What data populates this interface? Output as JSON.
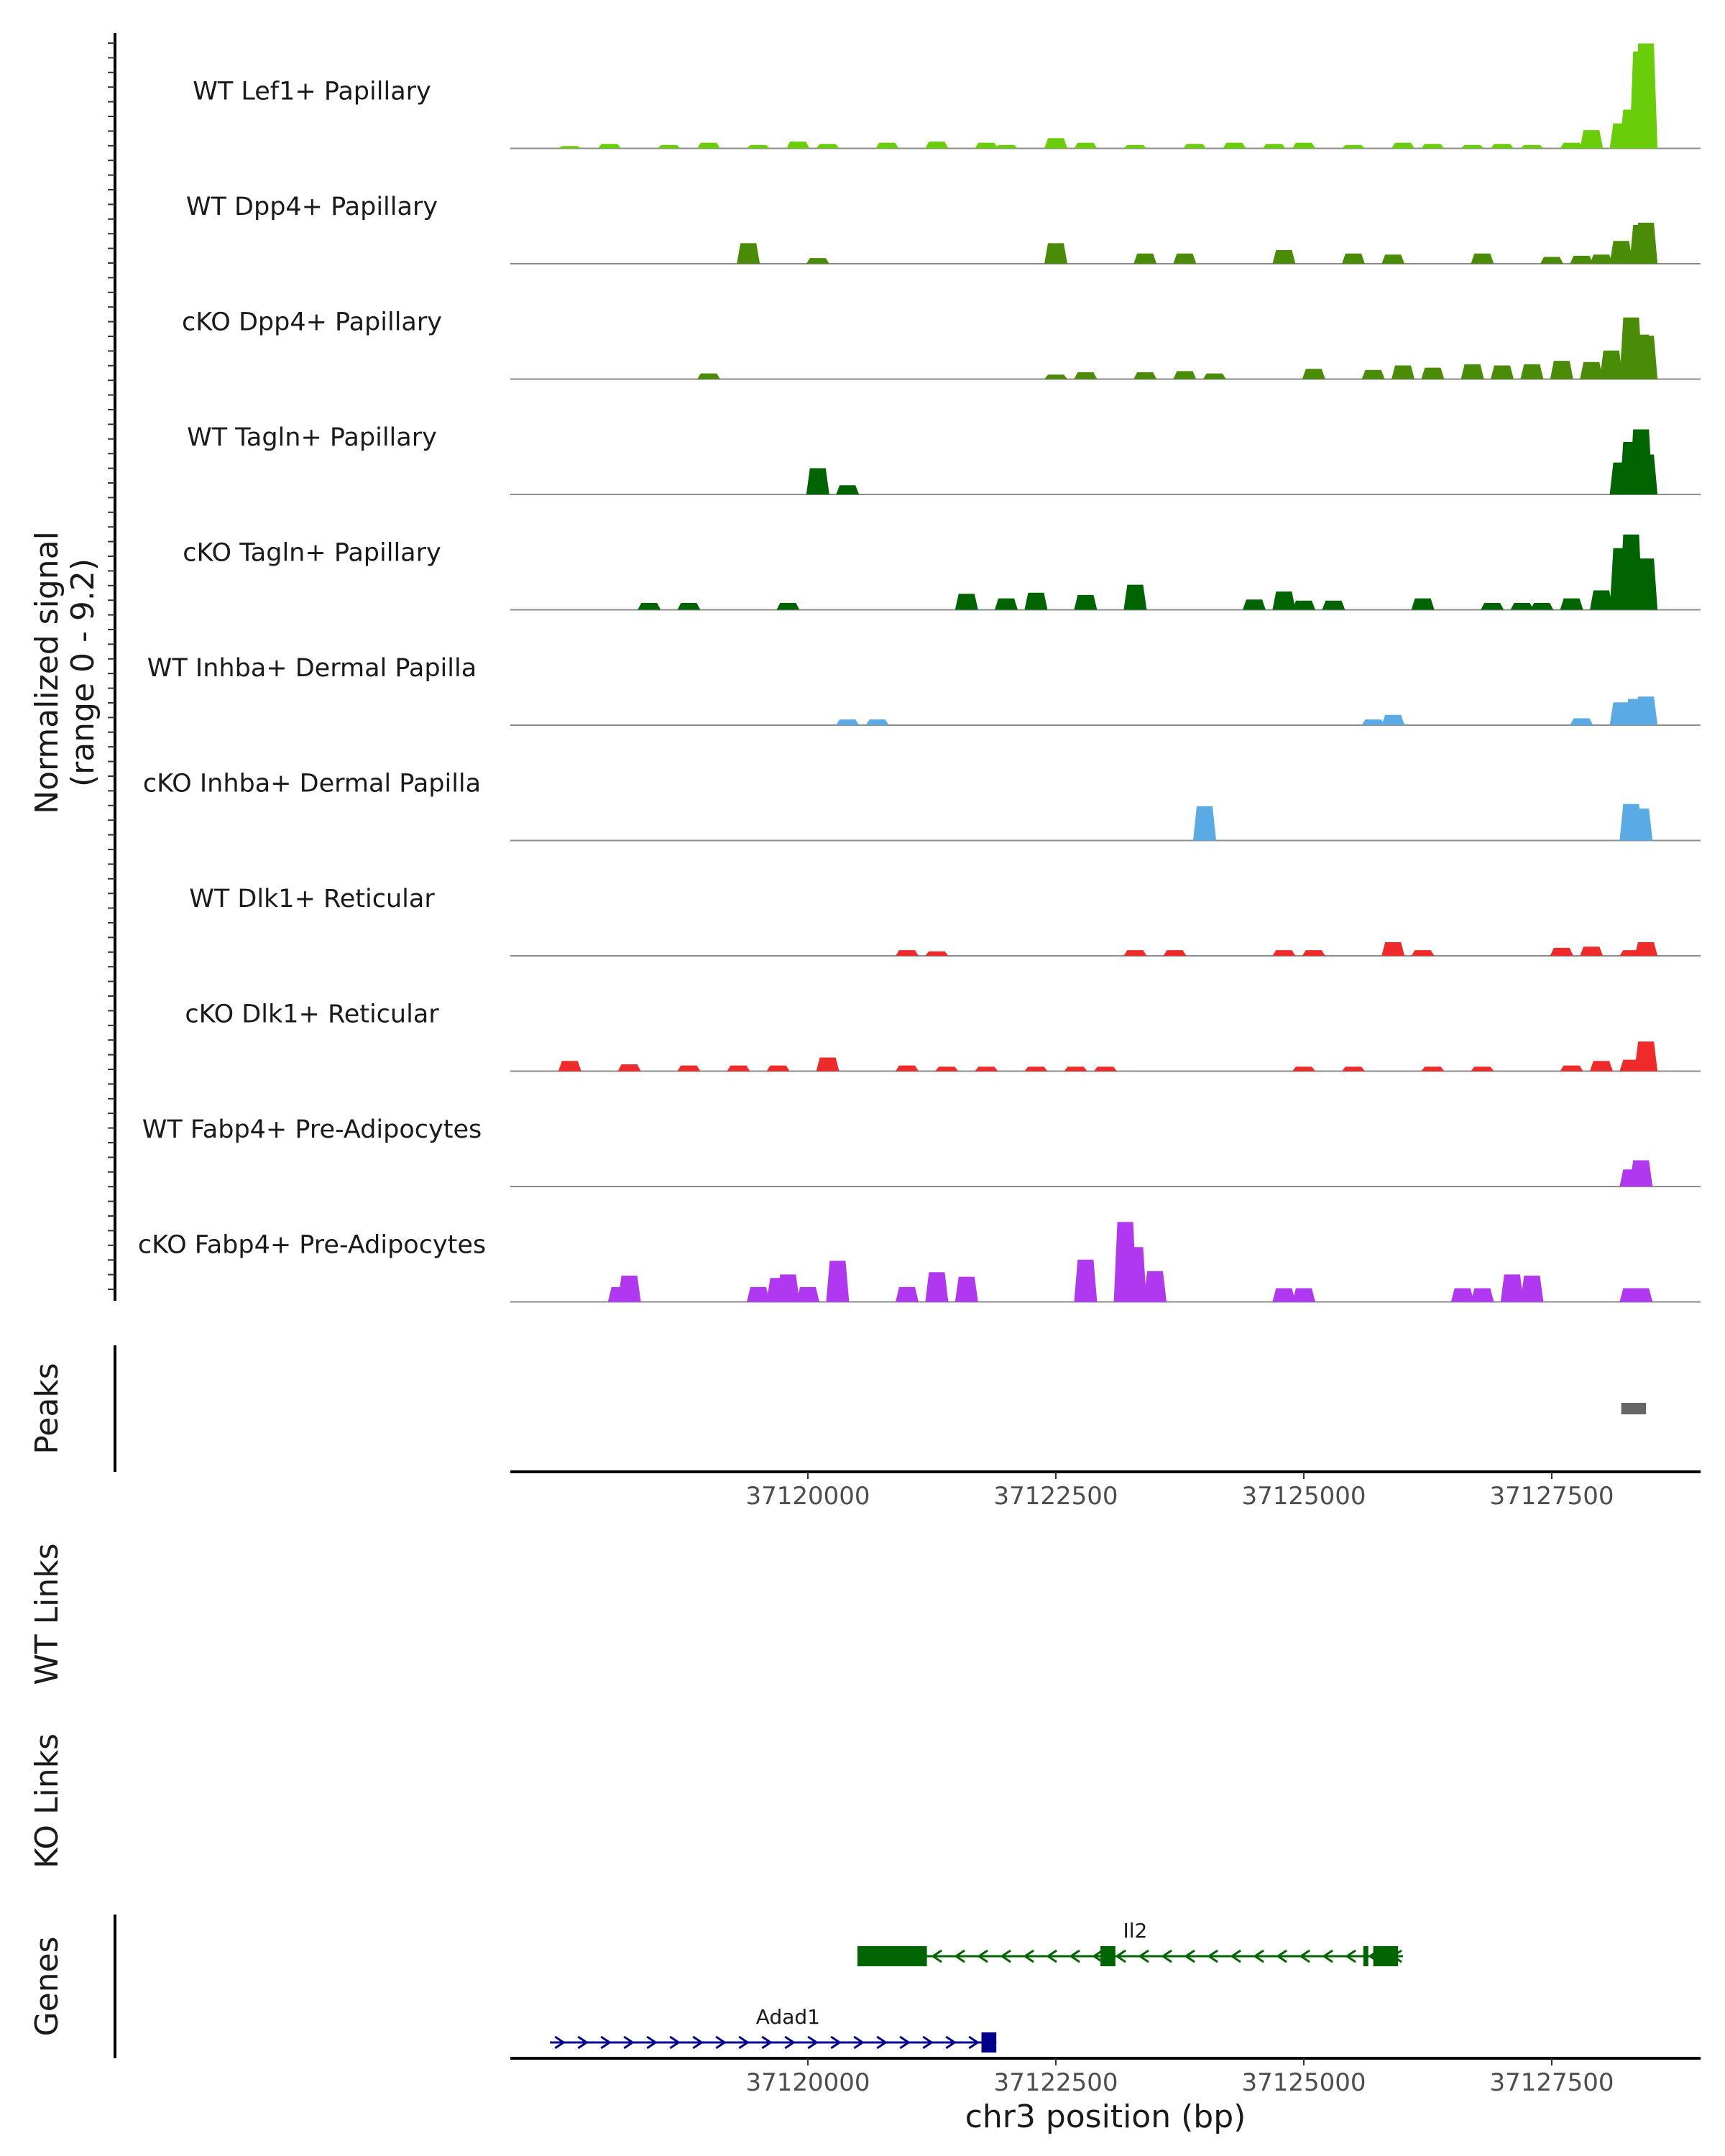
{
  "chart_data": {
    "type": "area",
    "title": "",
    "region": {
      "chromosome": "chr3",
      "start": 37117000,
      "end": 37129000
    },
    "ylabel": "Normalized signal",
    "ylabel_range": "(range 0 - 9.2)",
    "ylim": [
      0,
      9.2
    ],
    "xlabel": "chr3 position (bp)",
    "x_ticks": [
      {
        "value": 37120000,
        "label": "37120000"
      },
      {
        "value": 37122500,
        "label": "37122500"
      },
      {
        "value": 37125000,
        "label": "37125000"
      },
      {
        "value": 37127500,
        "label": "37127500"
      }
    ],
    "series": [
      {
        "name": "WT Lef1+ Papillary",
        "color": "#6acd0a",
        "points": [
          [
            37117600,
            0.2
          ],
          [
            37118000,
            0.4
          ],
          [
            37118600,
            0.3
          ],
          [
            37119000,
            0.5
          ],
          [
            37119500,
            0.3
          ],
          [
            37119900,
            0.6
          ],
          [
            37120200,
            0.4
          ],
          [
            37120800,
            0.5
          ],
          [
            37121300,
            0.6
          ],
          [
            37121800,
            0.5
          ],
          [
            37122000,
            0.3
          ],
          [
            37122500,
            0.9
          ],
          [
            37122800,
            0.5
          ],
          [
            37123300,
            0.3
          ],
          [
            37123900,
            0.4
          ],
          [
            37124300,
            0.5
          ],
          [
            37124700,
            0.4
          ],
          [
            37125000,
            0.5
          ],
          [
            37125500,
            0.3
          ],
          [
            37126000,
            0.5
          ],
          [
            37126300,
            0.4
          ],
          [
            37126700,
            0.3
          ],
          [
            37127000,
            0.4
          ],
          [
            37127300,
            0.3
          ],
          [
            37127700,
            0.5
          ],
          [
            37127900,
            1.6
          ],
          [
            37128200,
            2.2
          ],
          [
            37128300,
            3.4
          ],
          [
            37128400,
            8.5
          ],
          [
            37128450,
            9.2
          ]
        ]
      },
      {
        "name": "WT Dpp4+ Papillary",
        "color": "#4a8c07",
        "points": [
          [
            37119400,
            1.8
          ],
          [
            37120100,
            0.5
          ],
          [
            37122500,
            1.8
          ],
          [
            37123400,
            0.9
          ],
          [
            37123800,
            0.9
          ],
          [
            37124800,
            1.2
          ],
          [
            37125500,
            0.9
          ],
          [
            37125900,
            0.8
          ],
          [
            37126800,
            0.9
          ],
          [
            37127500,
            0.6
          ],
          [
            37127800,
            0.7
          ],
          [
            37128000,
            0.8
          ],
          [
            37128200,
            2.0
          ],
          [
            37128400,
            3.4
          ],
          [
            37128450,
            3.6
          ]
        ]
      },
      {
        "name": "cKO Dpp4+ Papillary",
        "color": "#4a8c07",
        "points": [
          [
            37119000,
            0.5
          ],
          [
            37122500,
            0.4
          ],
          [
            37122800,
            0.6
          ],
          [
            37123400,
            0.6
          ],
          [
            37123800,
            0.7
          ],
          [
            37124100,
            0.5
          ],
          [
            37125100,
            0.9
          ],
          [
            37125700,
            0.8
          ],
          [
            37126000,
            1.2
          ],
          [
            37126300,
            1.0
          ],
          [
            37126700,
            1.3
          ],
          [
            37127000,
            1.2
          ],
          [
            37127300,
            1.3
          ],
          [
            37127600,
            1.6
          ],
          [
            37127900,
            1.5
          ],
          [
            37128100,
            2.5
          ],
          [
            37128300,
            5.4
          ],
          [
            37128400,
            3.9
          ],
          [
            37128450,
            3.8
          ]
        ]
      },
      {
        "name": "WT Tagln+ Papillary",
        "color": "#006400",
        "points": [
          [
            37120100,
            2.3
          ],
          [
            37120400,
            0.8
          ],
          [
            37128200,
            2.8
          ],
          [
            37128300,
            4.6
          ],
          [
            37128400,
            5.7
          ],
          [
            37128450,
            3.5
          ]
        ]
      },
      {
        "name": "cKO Tagln+ Papillary",
        "color": "#006400",
        "points": [
          [
            37118400,
            0.6
          ],
          [
            37118800,
            0.6
          ],
          [
            37119800,
            0.6
          ],
          [
            37121600,
            1.4
          ],
          [
            37122000,
            1.0
          ],
          [
            37122300,
            1.5
          ],
          [
            37122800,
            1.3
          ],
          [
            37123300,
            2.2
          ],
          [
            37124500,
            0.9
          ],
          [
            37124800,
            1.6
          ],
          [
            37125000,
            0.8
          ],
          [
            37125300,
            0.8
          ],
          [
            37126200,
            1.0
          ],
          [
            37126900,
            0.6
          ],
          [
            37127200,
            0.6
          ],
          [
            37127400,
            0.6
          ],
          [
            37127700,
            1.0
          ],
          [
            37128000,
            1.7
          ],
          [
            37128200,
            5.4
          ],
          [
            37128300,
            6.6
          ],
          [
            37128450,
            4.5
          ]
        ]
      },
      {
        "name": "WT Inhba+ Dermal Papilla",
        "color": "#5aaae6",
        "points": [
          [
            37120400,
            0.5
          ],
          [
            37120700,
            0.5
          ],
          [
            37125700,
            0.5
          ],
          [
            37125900,
            0.9
          ],
          [
            37127800,
            0.6
          ],
          [
            37128200,
            2.0
          ],
          [
            37128350,
            2.3
          ],
          [
            37128450,
            2.5
          ]
        ]
      },
      {
        "name": "cKO Inhba+ Dermal Papilla",
        "color": "#5aaae6",
        "points": [
          [
            37124000,
            3.0
          ],
          [
            37128300,
            3.2
          ],
          [
            37128400,
            2.8
          ]
        ]
      },
      {
        "name": "WT Dlk1+ Reticular",
        "color": "#ee2a2a",
        "points": [
          [
            37121000,
            0.5
          ],
          [
            37121300,
            0.4
          ],
          [
            37123300,
            0.5
          ],
          [
            37123700,
            0.5
          ],
          [
            37124800,
            0.5
          ],
          [
            37125100,
            0.5
          ],
          [
            37125900,
            1.2
          ],
          [
            37126200,
            0.5
          ],
          [
            37127600,
            0.7
          ],
          [
            37127900,
            0.8
          ],
          [
            37128300,
            0.5
          ],
          [
            37128450,
            1.2
          ]
        ]
      },
      {
        "name": "cKO Dlk1+ Reticular",
        "color": "#ee2a2a",
        "points": [
          [
            37117600,
            0.9
          ],
          [
            37118200,
            0.6
          ],
          [
            37118800,
            0.5
          ],
          [
            37119300,
            0.5
          ],
          [
            37119700,
            0.5
          ],
          [
            37120200,
            1.2
          ],
          [
            37121000,
            0.5
          ],
          [
            37121400,
            0.4
          ],
          [
            37121800,
            0.4
          ],
          [
            37122300,
            0.4
          ],
          [
            37122700,
            0.4
          ],
          [
            37123000,
            0.4
          ],
          [
            37125000,
            0.4
          ],
          [
            37125500,
            0.4
          ],
          [
            37126300,
            0.4
          ],
          [
            37126800,
            0.4
          ],
          [
            37127700,
            0.5
          ],
          [
            37128000,
            0.9
          ],
          [
            37128300,
            1.0
          ],
          [
            37128450,
            2.6
          ]
        ]
      },
      {
        "name": "WT Fabp4+ Pre-Adipocytes",
        "color": "#b038f0",
        "points": [
          [
            37128300,
            1.5
          ],
          [
            37128400,
            2.3
          ]
        ]
      },
      {
        "name": "cKO Fabp4+ Pre-Adipocytes",
        "color": "#b038f0",
        "points": [
          [
            37118100,
            1.3
          ],
          [
            37118200,
            2.3
          ],
          [
            37119500,
            1.3
          ],
          [
            37119700,
            2.1
          ],
          [
            37119800,
            2.4
          ],
          [
            37120000,
            1.3
          ],
          [
            37120300,
            3.6
          ],
          [
            37121000,
            1.3
          ],
          [
            37121300,
            2.6
          ],
          [
            37121600,
            2.2
          ],
          [
            37122800,
            3.7
          ],
          [
            37123200,
            7.0
          ],
          [
            37123300,
            4.8
          ],
          [
            37123500,
            2.7
          ],
          [
            37124800,
            1.2
          ],
          [
            37125000,
            1.2
          ],
          [
            37126600,
            1.2
          ],
          [
            37126800,
            1.2
          ],
          [
            37127100,
            2.4
          ],
          [
            37127300,
            2.3
          ],
          [
            37128300,
            1.2
          ],
          [
            37128400,
            1.2
          ]
        ]
      }
    ],
    "peaks_track": {
      "title": "Peaks",
      "peaks": [
        {
          "start": 37128200,
          "end": 37128450
        }
      ]
    },
    "links_tracks": [
      {
        "title": "WT Links"
      },
      {
        "title": "KO Links"
      }
    ],
    "genes_track": {
      "title": "Genes",
      "genes": [
        {
          "name": "Il2",
          "strand": "-",
          "start": 37120500,
          "end": 37126000,
          "color": "#006400",
          "exons": [
            [
              37120500,
              37121200
            ],
            [
              37122950,
              37123100
            ],
            [
              37125600,
              37125650
            ],
            [
              37125700,
              37125950
            ]
          ]
        },
        {
          "name": "Adad1",
          "strand": "+",
          "start": 37117400,
          "end": 37121900,
          "color": "#00008b",
          "exons": [
            [
              37121750,
              37121900
            ]
          ]
        }
      ]
    }
  }
}
